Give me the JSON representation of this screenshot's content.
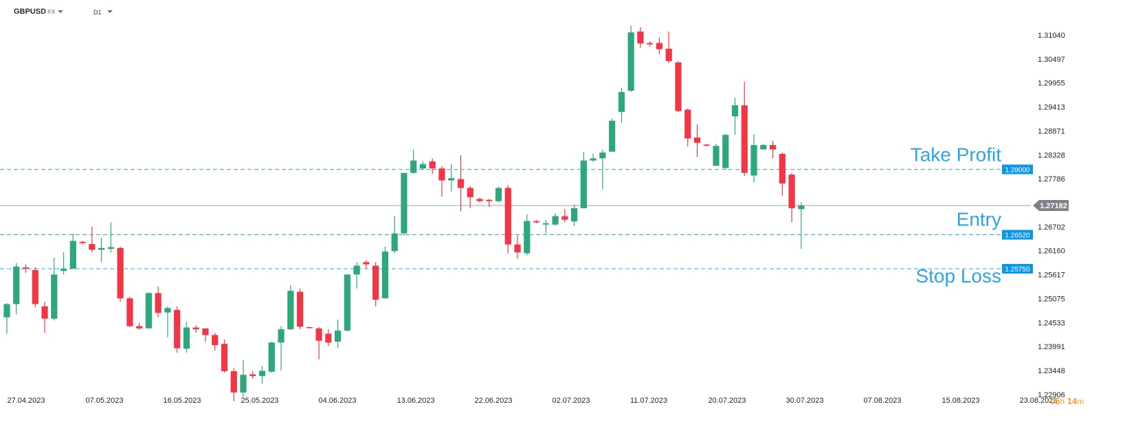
{
  "header": {
    "symbol": "GBPUSD",
    "symbol_type": "FX",
    "timeframe": "D1"
  },
  "timer": {
    "hours": "05",
    "h_unit": "h",
    "minutes": "14",
    "m_unit": "m"
  },
  "chart_data": {
    "type": "candlestick",
    "title": "",
    "xlabel": "",
    "ylabel": "",
    "ylim": [
      1.2255,
      1.3152
    ],
    "grid": false,
    "x_tick_labels": [
      "27.04.2023",
      "07.05.2023",
      "16.05.2023",
      "25.05.2023",
      "04.06.2023",
      "13.06.2023",
      "22.06.2023",
      "02.07.2023",
      "11.07.2023",
      "20.07.2023",
      "30.07.2023",
      "07.08.2023",
      "15.08.2023",
      "23.08.2023"
    ],
    "y_tick_labels": [
      "1.31040",
      "1.30497",
      "1.29955",
      "1.29413",
      "1.28871",
      "1.28328",
      "1.27786",
      "1.26702",
      "1.26160",
      "1.25617",
      "1.25075",
      "1.24533",
      "1.23991",
      "1.23448",
      "1.22906"
    ],
    "current_price": {
      "value": 1.27182,
      "label": "1.27182",
      "color": "#7d8288"
    },
    "levels": [
      {
        "name": "Take Profit",
        "value": 1.28,
        "label": "1.28000",
        "color": "#2aa6e6"
      },
      {
        "name": "Entry",
        "value": 1.2652,
        "label": "1.26520",
        "color": "#2aa6e6"
      },
      {
        "name": "Stop Loss",
        "value": 1.2575,
        "label": "1.25750",
        "color": "#2aa6e6"
      }
    ],
    "colors": {
      "up": "#2ea87a",
      "down": "#f23645",
      "axis_text": "#222222"
    },
    "candles": [
      [
        1.2465,
        1.2495,
        1.2428,
        1.2497
      ],
      [
        1.2495,
        1.258,
        1.2472,
        1.2588
      ],
      [
        1.2578,
        1.2575,
        1.2566,
        1.2585
      ],
      [
        1.2572,
        1.2495,
        1.2488,
        1.2578
      ],
      [
        1.249,
        1.2462,
        1.243,
        1.25
      ],
      [
        1.2462,
        1.2562,
        1.2458,
        1.26
      ],
      [
        1.257,
        1.2575,
        1.2562,
        1.2612
      ],
      [
        1.2575,
        1.2638,
        1.2575,
        1.2655
      ],
      [
        1.2636,
        1.2633,
        1.263,
        1.2638
      ],
      [
        1.2631,
        1.2618,
        1.2612,
        1.267
      ],
      [
        1.2618,
        1.2622,
        1.259,
        1.2645
      ],
      [
        1.262,
        1.2624,
        1.2612,
        1.268
      ],
      [
        1.2622,
        1.2508,
        1.25,
        1.2625
      ],
      [
        1.2508,
        1.2445,
        1.2443,
        1.2512
      ],
      [
        1.2445,
        1.244,
        1.2437,
        1.2452
      ],
      [
        1.244,
        1.252,
        1.244,
        1.2522
      ],
      [
        1.252,
        1.2475,
        1.2465,
        1.2535
      ],
      [
        1.2476,
        1.2486,
        1.242,
        1.249
      ],
      [
        1.2482,
        1.2395,
        1.2385,
        1.249
      ],
      [
        1.2394,
        1.2442,
        1.2385,
        1.2455
      ],
      [
        1.2442,
        1.2438,
        1.243,
        1.2447
      ],
      [
        1.244,
        1.2425,
        1.241,
        1.244
      ],
      [
        1.2425,
        1.2402,
        1.239,
        1.243
      ],
      [
        1.2405,
        1.2343,
        1.234,
        1.2415
      ],
      [
        1.2343,
        1.2295,
        1.2275,
        1.235
      ],
      [
        1.2295,
        1.2335,
        1.2285,
        1.2368
      ],
      [
        1.2336,
        1.2332,
        1.2326,
        1.2343
      ],
      [
        1.2332,
        1.2344,
        1.2315,
        1.2355
      ],
      [
        1.2342,
        1.2408,
        1.234,
        1.241
      ],
      [
        1.2408,
        1.2438,
        1.2345,
        1.2445
      ],
      [
        1.2438,
        1.2525,
        1.2436,
        1.2538
      ],
      [
        1.2523,
        1.2444,
        1.2438,
        1.253
      ],
      [
        1.2443,
        1.2441,
        1.244,
        1.2444
      ],
      [
        1.244,
        1.2412,
        1.237,
        1.2443
      ],
      [
        1.2428,
        1.2408,
        1.24,
        1.2438
      ],
      [
        1.241,
        1.2435,
        1.2395,
        1.246
      ],
      [
        1.2435,
        1.2562,
        1.2433,
        1.2562
      ],
      [
        1.2562,
        1.2582,
        1.253,
        1.259
      ],
      [
        1.259,
        1.2585,
        1.2575,
        1.2595
      ],
      [
        1.2582,
        1.2505,
        1.249,
        1.259
      ],
      [
        1.2508,
        1.2614,
        1.2508,
        1.2625
      ],
      [
        1.2615,
        1.2655,
        1.261,
        1.2695
      ],
      [
        1.2655,
        1.2792,
        1.265,
        1.2792
      ],
      [
        1.2792,
        1.282,
        1.279,
        1.2845
      ],
      [
        1.2802,
        1.2812,
        1.2798,
        1.2818
      ],
      [
        1.2818,
        1.2802,
        1.279,
        1.2825
      ],
      [
        1.2802,
        1.2775,
        1.2738,
        1.2808
      ],
      [
        1.2775,
        1.278,
        1.275,
        1.2812
      ],
      [
        1.2778,
        1.2758,
        1.2705,
        1.2832
      ],
      [
        1.2758,
        1.2737,
        1.2712,
        1.2762
      ],
      [
        1.2733,
        1.2728,
        1.2725,
        1.2736
      ],
      [
        1.2731,
        1.2728,
        1.2715,
        1.2733
      ],
      [
        1.2728,
        1.2758,
        1.2725,
        1.2762
      ],
      [
        1.2758,
        1.263,
        1.261,
        1.2764
      ],
      [
        1.263,
        1.2612,
        1.2598,
        1.265
      ],
      [
        1.261,
        1.2683,
        1.2605,
        1.2698
      ],
      [
        1.2683,
        1.268,
        1.2678,
        1.2685
      ],
      [
        1.2675,
        1.2678,
        1.2655,
        1.2685
      ],
      [
        1.2675,
        1.2694,
        1.2672,
        1.27
      ],
      [
        1.2694,
        1.2686,
        1.268,
        1.271
      ],
      [
        1.2682,
        1.2712,
        1.2672,
        1.272
      ],
      [
        1.2712,
        1.282,
        1.2712,
        1.284
      ],
      [
        1.282,
        1.2825,
        1.2817,
        1.2836
      ],
      [
        1.2825,
        1.2838,
        1.2755,
        1.2845
      ],
      [
        1.284,
        1.291,
        1.284,
        1.2915
      ],
      [
        1.293,
        1.2975,
        1.2905,
        1.2985
      ],
      [
        1.2978,
        1.311,
        1.2975,
        1.3125
      ],
      [
        1.3112,
        1.3085,
        1.3075,
        1.3122
      ],
      [
        1.3086,
        1.3083,
        1.3078,
        1.309
      ],
      [
        1.3086,
        1.3072,
        1.306,
        1.3098
      ],
      [
        1.3073,
        1.3045,
        1.304,
        1.3112
      ],
      [
        1.3042,
        1.2932,
        1.293,
        1.3045
      ],
      [
        1.2935,
        1.287,
        1.2852,
        1.2938
      ],
      [
        1.2872,
        1.286,
        1.2828,
        1.2902
      ],
      [
        1.2856,
        1.2854,
        1.2852,
        1.2858
      ],
      [
        1.2808,
        1.2853,
        1.2808,
        1.2858
      ],
      [
        1.2803,
        1.2878,
        1.28,
        1.288
      ],
      [
        1.292,
        1.2945,
        1.2878,
        1.2962
      ],
      [
        1.2945,
        1.2792,
        1.2785,
        1.2998
      ],
      [
        1.2786,
        1.2855,
        1.277,
        1.288
      ],
      [
        1.2845,
        1.2855,
        1.2845,
        1.2858
      ],
      [
        1.2855,
        1.2845,
        1.2825,
        1.2865
      ],
      [
        1.2835,
        1.2768,
        1.274,
        1.2838
      ],
      [
        1.2788,
        1.2712,
        1.268,
        1.2792
      ],
      [
        1.271,
        1.2718,
        1.262,
        1.2725
      ]
    ]
  }
}
